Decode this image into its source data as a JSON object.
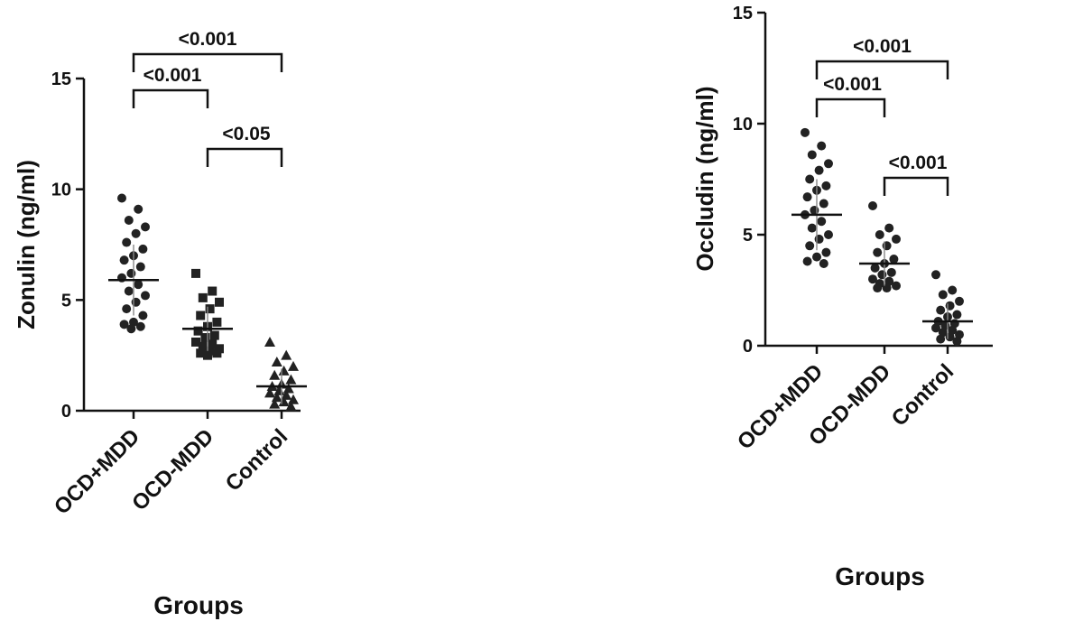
{
  "chart_data": [
    {
      "type": "dotplot",
      "ylabel": "Zonulin (ng/ml)",
      "xlabel": "Groups",
      "categories": [
        "OCD+MDD",
        "OCD-MDD",
        "Control"
      ],
      "ylim": [
        0,
        15
      ],
      "yticks": [
        0,
        5,
        10,
        15
      ],
      "groups": [
        {
          "marker": "circle",
          "mean": 5.9,
          "sd": 1.6,
          "values": [
            9.6,
            9.1,
            8.6,
            8.3,
            8.0,
            7.6,
            7.3,
            7.0,
            6.8,
            6.5,
            6.2,
            6.0,
            5.7,
            5.4,
            5.2,
            4.9,
            4.6,
            4.3,
            4.0,
            3.9,
            3.8,
            3.7
          ]
        },
        {
          "marker": "square",
          "mean": 3.7,
          "sd": 1.0,
          "values": [
            6.2,
            5.4,
            5.1,
            4.9,
            4.6,
            4.3,
            4.0,
            3.8,
            3.6,
            3.4,
            3.3,
            3.1,
            3.0,
            2.9,
            2.8,
            2.7,
            2.6,
            2.6,
            2.5
          ]
        },
        {
          "marker": "triangle",
          "mean": 1.1,
          "sd": 0.8,
          "values": [
            3.1,
            2.5,
            2.2,
            2.0,
            1.8,
            1.6,
            1.4,
            1.2,
            1.1,
            1.0,
            0.9,
            0.8,
            0.7,
            0.6,
            0.5,
            0.4,
            0.3,
            0.2
          ]
        }
      ],
      "comparisons": [
        {
          "groups": [
            0,
            2
          ],
          "label": "<0.001"
        },
        {
          "groups": [
            0,
            1
          ],
          "label": "<0.001"
        },
        {
          "groups": [
            1,
            2
          ],
          "label": "<0.05"
        }
      ]
    },
    {
      "type": "dotplot",
      "ylabel": "Occludin (ng/ml)",
      "xlabel": "Groups",
      "categories": [
        "OCD+MDD",
        "OCD-MDD",
        "Control"
      ],
      "ylim": [
        0,
        15
      ],
      "yticks": [
        0,
        5,
        10,
        15
      ],
      "groups": [
        {
          "marker": "circle",
          "mean": 5.9,
          "sd": 1.6,
          "values": [
            9.6,
            9.0,
            8.6,
            8.2,
            7.9,
            7.5,
            7.2,
            7.0,
            6.7,
            6.4,
            6.1,
            5.9,
            5.6,
            5.3,
            5.0,
            4.8,
            4.5,
            4.2,
            4.0,
            3.8,
            3.7
          ]
        },
        {
          "marker": "circle",
          "mean": 3.7,
          "sd": 1.0,
          "values": [
            6.3,
            5.3,
            5.0,
            4.8,
            4.5,
            4.2,
            3.9,
            3.7,
            3.5,
            3.3,
            3.2,
            3.0,
            2.9,
            2.8,
            2.7,
            2.6,
            2.6
          ]
        },
        {
          "marker": "circle",
          "mean": 1.1,
          "sd": 0.8,
          "values": [
            3.2,
            2.5,
            2.3,
            2.0,
            1.8,
            1.6,
            1.4,
            1.3,
            1.1,
            1.0,
            0.9,
            0.8,
            0.7,
            0.6,
            0.5,
            0.4,
            0.3,
            0.2
          ]
        }
      ],
      "comparisons": [
        {
          "groups": [
            0,
            2
          ],
          "label": "<0.001"
        },
        {
          "groups": [
            0,
            1
          ],
          "label": "<0.001"
        },
        {
          "groups": [
            1,
            2
          ],
          "label": "<0.001"
        }
      ]
    }
  ]
}
